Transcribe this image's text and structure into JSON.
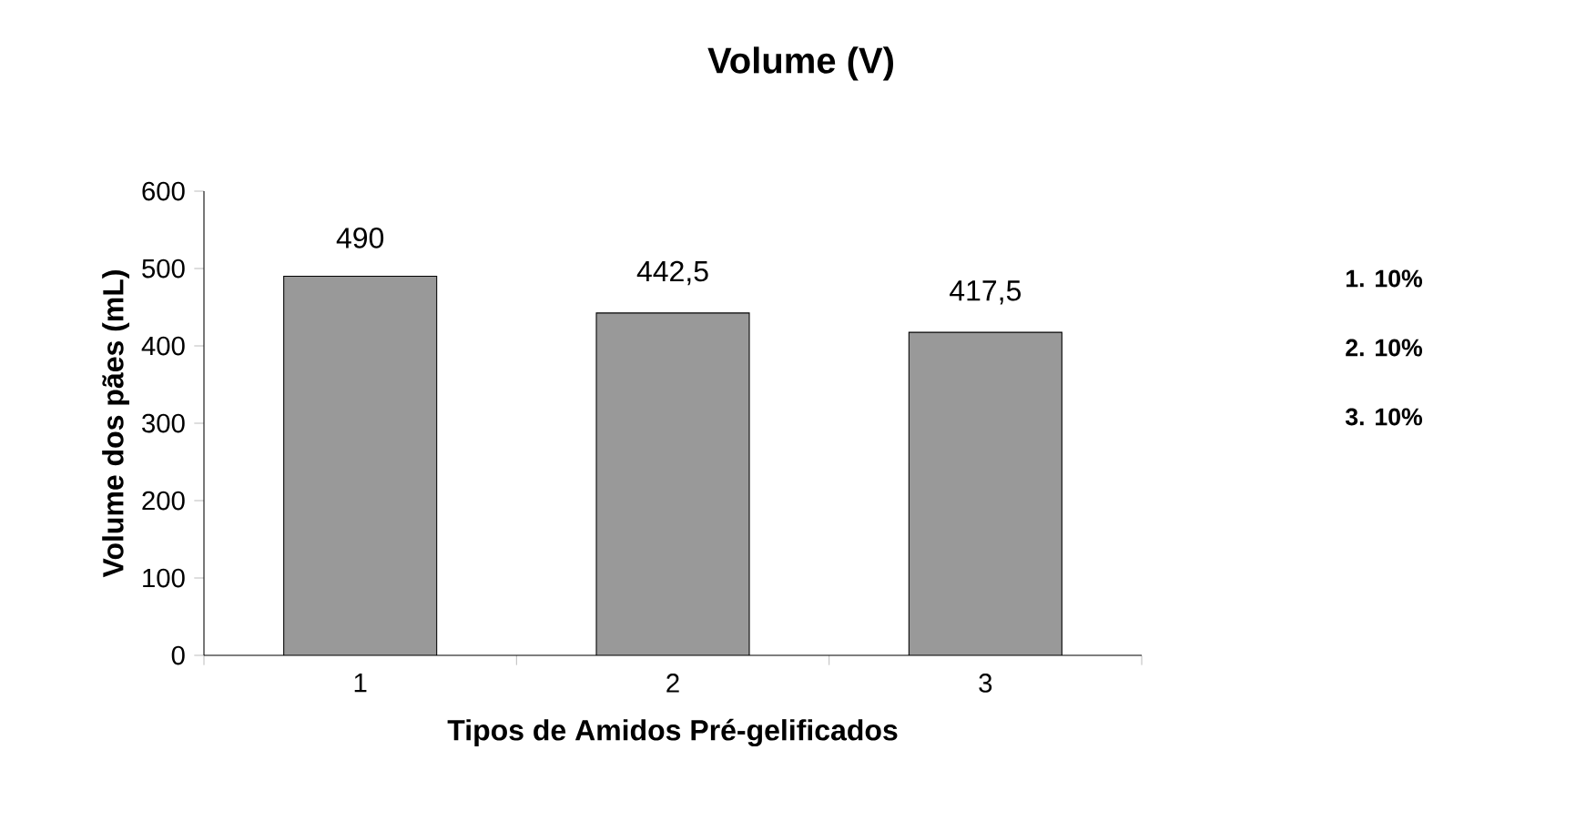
{
  "chart_data": {
    "type": "bar",
    "title": "Volume (V)",
    "xlabel": "Tipos de Amidos Pré-gelificados",
    "ylabel": "Volume dos pães (mL)",
    "categories": [
      "1",
      "2",
      "3"
    ],
    "values": [
      490,
      442.5,
      417.5
    ],
    "value_labels": [
      "490",
      "442,5",
      "417,5"
    ],
    "color": "#999999",
    "ylim": [
      0,
      600
    ],
    "yticks": [
      0,
      100,
      200,
      300,
      400,
      500,
      600
    ],
    "grid": false,
    "annotations": [
      "1. 10%",
      "2. 10%",
      "3. 10%"
    ]
  }
}
